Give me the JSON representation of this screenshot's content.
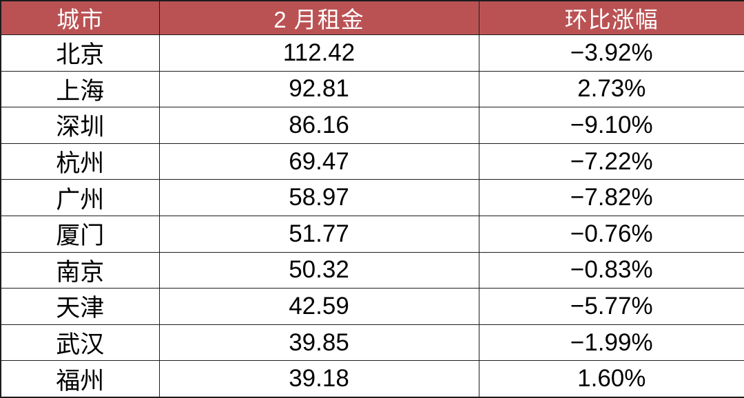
{
  "chart_data": {
    "type": "table",
    "columns": [
      "城市",
      "2 月租金",
      "环比涨幅"
    ],
    "rows": [
      [
        "北京",
        "112.42",
        "−3.92%"
      ],
      [
        "上海",
        "92.81",
        "2.73%"
      ],
      [
        "深圳",
        "86.16",
        "−9.10%"
      ],
      [
        "杭州",
        "69.47",
        "−7.22%"
      ],
      [
        "广州",
        "58.97",
        "−7.82%"
      ],
      [
        "厦门",
        "51.77",
        "−0.76%"
      ],
      [
        "南京",
        "50.32",
        "−0.83%"
      ],
      [
        "天津",
        "42.59",
        "−5.77%"
      ],
      [
        "武汉",
        "39.85",
        "−1.99%"
      ],
      [
        "福州",
        "39.18",
        "1.60%"
      ]
    ],
    "numeric": {
      "cities": [
        "北京",
        "上海",
        "深圳",
        "杭州",
        "广州",
        "厦门",
        "南京",
        "天津",
        "武汉",
        "福州"
      ],
      "rent_feb": [
        112.42,
        92.81,
        86.16,
        69.47,
        58.97,
        51.77,
        50.32,
        42.59,
        39.85,
        39.18
      ],
      "mom_change_pct": [
        -3.92,
        2.73,
        -9.1,
        -7.22,
        -7.82,
        -0.76,
        -0.83,
        -5.77,
        -1.99,
        1.6
      ]
    },
    "layout": {
      "grid": true,
      "header_position": "top"
    }
  },
  "colors": {
    "header_bg": "#ba5254",
    "header_text": "#ffffff",
    "body_text": "#000000",
    "border": "#1c1c1c",
    "row_bg": "#ffffff"
  }
}
